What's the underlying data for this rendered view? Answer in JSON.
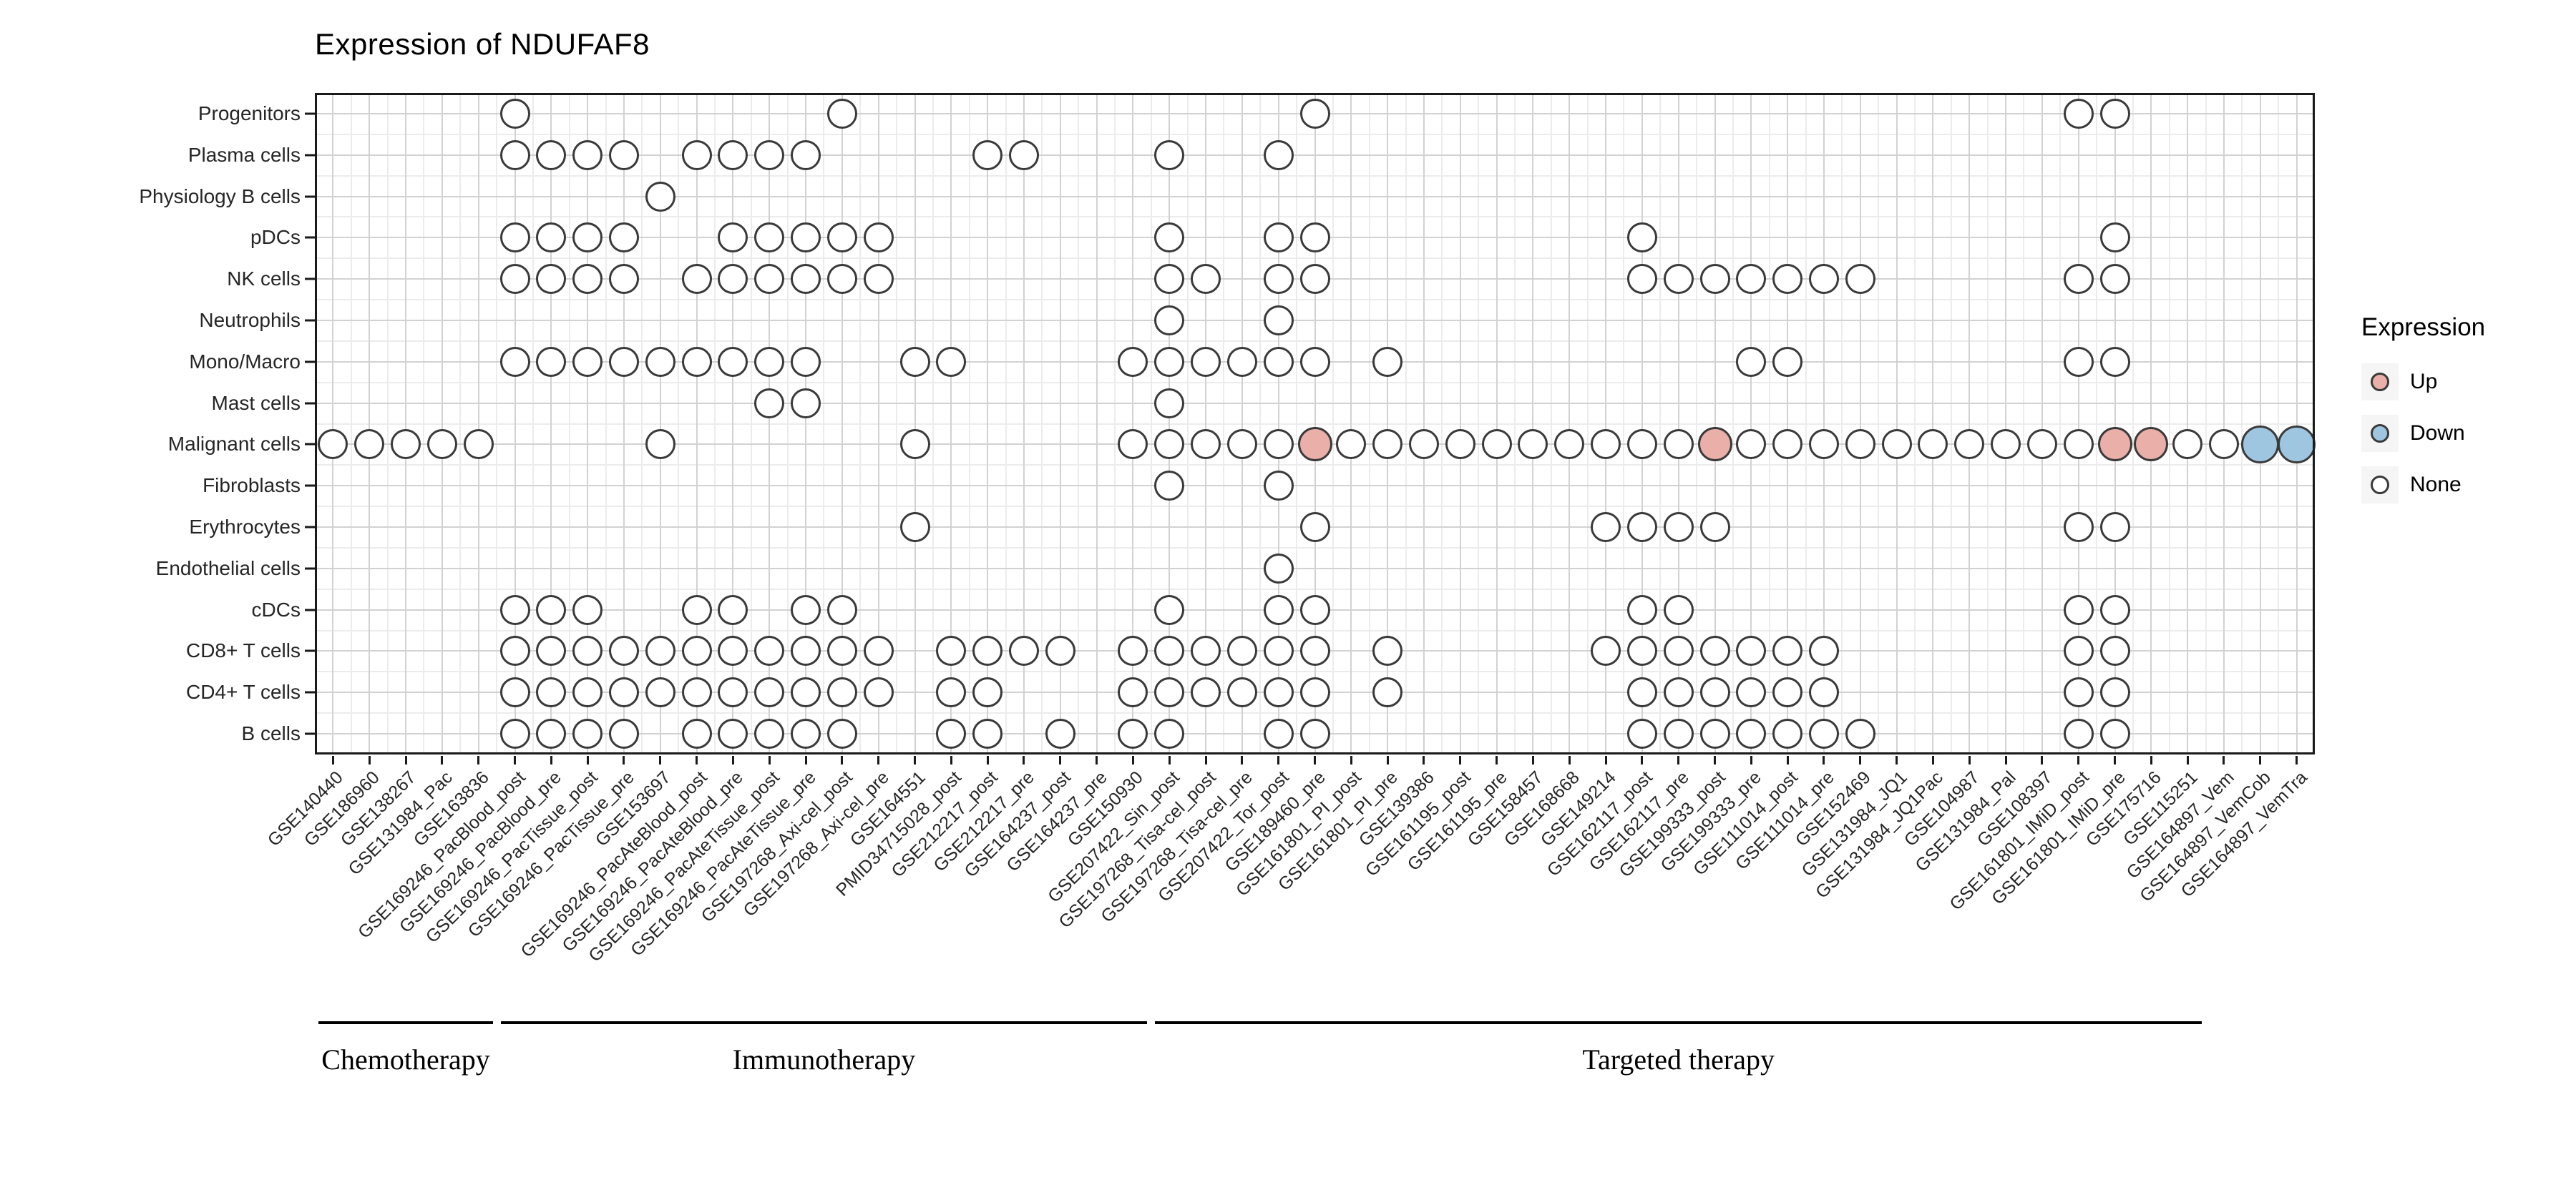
{
  "title": "Expression of NDUFAF8",
  "legend": {
    "title": "Expression",
    "items": [
      {
        "label": "Up",
        "color": "#E9AFA8"
      },
      {
        "label": "Down",
        "color": "#9FC6E1"
      },
      {
        "label": "None",
        "color": "#FFFFFF"
      }
    ]
  },
  "chart_data": {
    "type": "scatter",
    "subtype": "dot-matrix",
    "title": "Expression of NDUFAF8",
    "xlabel": "",
    "ylabel": "",
    "grid": true,
    "legend_position": "right",
    "x_tick_rotation": 45,
    "x_categories": [
      "GSE140440",
      "GSE186960",
      "GSE138267",
      "GSE131984_Pac",
      "GSE163836",
      "GSE169246_PacBlood_post",
      "GSE169246_PacBlood_pre",
      "GSE169246_PacTissue_post",
      "GSE169246_PacTissue_pre",
      "GSE153697",
      "GSE169246_PacAteBlood_post",
      "GSE169246_PacAteBlood_pre",
      "GSE169246_PacAteTissue_post",
      "GSE169246_PacAteTissue_pre",
      "GSE197268_Axi-cel_post",
      "GSE197268_Axi-cel_pre",
      "GSE164551",
      "PMID34715028_post",
      "GSE212217_post",
      "GSE212217_pre",
      "GSE164237_post",
      "GSE164237_pre",
      "GSE150930",
      "GSE207422_Sin_post",
      "GSE197268_Tisa-cel_post",
      "GSE197268_Tisa-cel_pre",
      "GSE207422_Tor_post",
      "GSE189460_pre",
      "GSE161801_PI_post",
      "GSE161801_PI_pre",
      "GSE139386",
      "GSE161195_post",
      "GSE161195_pre",
      "GSE158457",
      "GSE168668",
      "GSE149214",
      "GSE162117_post",
      "GSE162117_pre",
      "GSE199333_post",
      "GSE199333_pre",
      "GSE111014_post",
      "GSE111014_pre",
      "GSE152469",
      "GSE131984_JQ1",
      "GSE131984_JQ1Pac",
      "GSE104987",
      "GSE131984_Pal",
      "GSE108397",
      "GSE161801_IMiD_post",
      "GSE161801_IMiD_pre",
      "GSE175716",
      "GSE115251",
      "GSE164897_Vem",
      "GSE164897_VemCob",
      "GSE164897_VemTra"
    ],
    "y_categories": [
      "Progenitors",
      "Plasma cells",
      "Physiology B cells",
      "pDCs",
      "NK cells",
      "Neutrophils",
      "Mono/Macro",
      "Mast cells",
      "Malignant cells",
      "Fibroblasts",
      "Erythrocytes",
      "Endothelial cells",
      "cDCs",
      "CD8+ T cells",
      "CD4+ T cells",
      "B cells"
    ],
    "groups": [
      {
        "label": "Chemotherapy",
        "from": 1,
        "to": 5
      },
      {
        "label": "Immunotherapy",
        "from": 6,
        "to": 23
      },
      {
        "label": "Targeted therapy",
        "from": 24,
        "to": 52
      }
    ],
    "points": [
      {
        "cell_type": "Progenitors",
        "none": [
          6,
          15,
          28,
          49,
          50
        ],
        "up": [],
        "down": []
      },
      {
        "cell_type": "Plasma cells",
        "none": [
          6,
          7,
          8,
          9,
          11,
          12,
          13,
          14,
          19,
          20,
          24,
          27
        ],
        "up": [],
        "down": []
      },
      {
        "cell_type": "Physiology B cells",
        "none": [
          10
        ],
        "up": [],
        "down": []
      },
      {
        "cell_type": "pDCs",
        "none": [
          6,
          7,
          8,
          9,
          12,
          13,
          14,
          15,
          16,
          24,
          27,
          28,
          37,
          50
        ],
        "up": [],
        "down": []
      },
      {
        "cell_type": "NK cells",
        "none": [
          6,
          7,
          8,
          9,
          11,
          12,
          13,
          14,
          15,
          16,
          24,
          25,
          27,
          28,
          37,
          38,
          39,
          40,
          41,
          42,
          43,
          49,
          50
        ],
        "up": [],
        "down": []
      },
      {
        "cell_type": "Neutrophils",
        "none": [
          24,
          27
        ],
        "up": [],
        "down": []
      },
      {
        "cell_type": "Mono/Macro",
        "none": [
          6,
          7,
          8,
          9,
          10,
          11,
          12,
          13,
          14,
          17,
          18,
          23,
          24,
          25,
          26,
          27,
          28,
          30,
          40,
          41,
          49,
          50
        ],
        "up": [],
        "down": []
      },
      {
        "cell_type": "Mast cells",
        "none": [
          13,
          14,
          24
        ],
        "up": [],
        "down": []
      },
      {
        "cell_type": "Malignant cells",
        "none": [
          1,
          2,
          3,
          4,
          5,
          10,
          17,
          23,
          24,
          25,
          26,
          27,
          29,
          30,
          31,
          32,
          33,
          34,
          35,
          36,
          37,
          38,
          40,
          41,
          42,
          43,
          44,
          45,
          46,
          47,
          48,
          49,
          52,
          53
        ],
        "up": [
          28,
          39,
          50,
          51
        ],
        "down": [
          54,
          55
        ]
      },
      {
        "cell_type": "Fibroblasts",
        "none": [
          24,
          27
        ],
        "up": [],
        "down": []
      },
      {
        "cell_type": "Erythrocytes",
        "none": [
          17,
          28,
          36,
          37,
          38,
          39,
          49,
          50
        ],
        "up": [],
        "down": []
      },
      {
        "cell_type": "Endothelial cells",
        "none": [
          27
        ],
        "up": [],
        "down": []
      },
      {
        "cell_type": "cDCs",
        "none": [
          6,
          7,
          8,
          11,
          12,
          14,
          15,
          24,
          27,
          28,
          37,
          38,
          49,
          50
        ],
        "up": [],
        "down": []
      },
      {
        "cell_type": "CD8+ T cells",
        "none": [
          6,
          7,
          8,
          9,
          10,
          11,
          12,
          13,
          14,
          15,
          16,
          18,
          19,
          20,
          21,
          23,
          24,
          25,
          26,
          27,
          28,
          30,
          36,
          37,
          38,
          39,
          40,
          41,
          42,
          49,
          50
        ],
        "up": [],
        "down": []
      },
      {
        "cell_type": "CD4+ T cells",
        "none": [
          6,
          7,
          8,
          9,
          10,
          11,
          12,
          13,
          14,
          15,
          16,
          18,
          19,
          23,
          24,
          25,
          26,
          27,
          28,
          30,
          37,
          38,
          39,
          40,
          41,
          42,
          49,
          50
        ],
        "up": [],
        "down": []
      },
      {
        "cell_type": "B cells",
        "none": [
          6,
          7,
          8,
          9,
          11,
          12,
          13,
          14,
          15,
          18,
          19,
          21,
          23,
          24,
          27,
          28,
          37,
          38,
          39,
          40,
          41,
          42,
          43,
          49,
          50
        ],
        "up": [],
        "down": []
      }
    ]
  }
}
